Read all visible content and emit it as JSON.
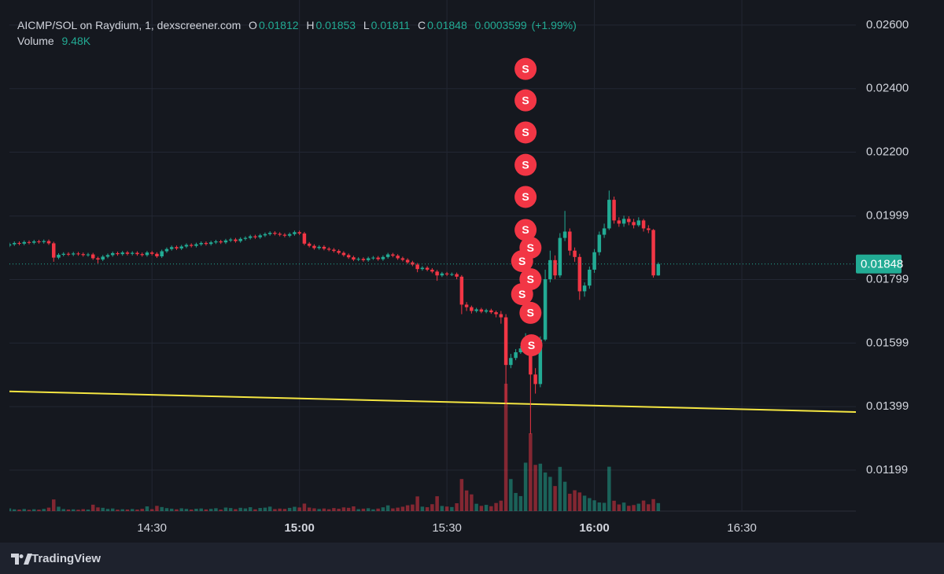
{
  "chart_data": {
    "type": "candlestick",
    "title": "AICMP/SOL on Raydium, 1, dexscreener.com",
    "legend": {
      "o": "O",
      "h": "H",
      "l": "L",
      "c": "C",
      "change": 0.0003599,
      "change_label": "(+1.99%)",
      "volume": "Volume",
      "volume_label": "9.48K"
    },
    "branding": "TradingView",
    "up_color": "#22ab94",
    "down_color": "#f23645",
    "xlim": [
      841,
      1013.2
    ],
    "xticks": [
      {
        "value": 870,
        "label": "14:30"
      },
      {
        "value": 900,
        "label": "15:00"
      },
      {
        "value": 930,
        "label": "15:30"
      },
      {
        "value": 960,
        "label": "16:00"
      },
      {
        "value": 990,
        "label": "16:30"
      }
    ],
    "ylim": [
      0.0107,
      0.02679
    ],
    "yticks": [
      {
        "value": 0.026,
        "label": "0.02600"
      },
      {
        "value": 0.024,
        "label": "0.02400"
      },
      {
        "value": 0.022,
        "label": "0.02200"
      },
      0.01999,
      0.01799,
      0.01599,
      0.01399,
      0.01199
    ],
    "grid": true,
    "x": [
      841,
      842,
      843,
      844,
      845,
      846,
      847,
      848,
      849,
      850,
      851,
      852,
      853,
      854,
      855,
      856,
      857,
      858,
      859,
      860,
      861,
      862,
      863,
      864,
      865,
      866,
      867,
      868,
      869,
      870,
      871,
      872,
      873,
      874,
      875,
      876,
      877,
      878,
      879,
      880,
      881,
      882,
      883,
      884,
      885,
      886,
      887,
      888,
      889,
      890,
      891,
      892,
      893,
      894,
      895,
      896,
      897,
      898,
      899,
      900,
      901,
      902,
      903,
      904,
      905,
      906,
      907,
      908,
      909,
      910,
      911,
      912,
      913,
      914,
      915,
      916,
      917,
      918,
      919,
      920,
      921,
      922,
      923,
      924,
      925,
      926,
      927,
      928,
      929,
      930,
      931,
      932,
      933,
      934,
      935,
      936,
      937,
      938,
      939,
      940,
      941,
      942,
      943,
      944,
      945,
      946,
      947,
      948,
      949,
      950,
      951,
      952,
      953,
      954,
      955,
      956,
      957,
      958,
      959,
      960,
      961,
      962,
      963,
      964,
      965,
      966,
      967,
      968,
      969,
      970,
      971,
      972,
      973
    ],
    "open": [
      0.01906,
      0.0191,
      0.01914,
      0.01912,
      0.01917,
      0.01915,
      0.01919,
      0.01917,
      0.0192,
      0.01913,
      0.01868,
      0.01877,
      0.0188,
      0.01878,
      0.01881,
      0.01879,
      0.01876,
      0.01878,
      0.01866,
      0.01862,
      0.01871,
      0.01876,
      0.01882,
      0.01879,
      0.01884,
      0.0188,
      0.01883,
      0.01879,
      0.01876,
      0.01884,
      0.0188,
      0.01872,
      0.01888,
      0.01895,
      0.01901,
      0.01897,
      0.01903,
      0.01908,
      0.01905,
      0.0191,
      0.01914,
      0.01911,
      0.01916,
      0.01919,
      0.01916,
      0.01922,
      0.01925,
      0.0192,
      0.01927,
      0.0193,
      0.01935,
      0.01932,
      0.01938,
      0.01942,
      0.01946,
      0.01943,
      0.0194,
      0.01937,
      0.01942,
      0.01948,
      0.01944,
      0.01912,
      0.01905,
      0.01898,
      0.01902,
      0.01896,
      0.01893,
      0.01889,
      0.01883,
      0.01876,
      0.01869,
      0.01862,
      0.01864,
      0.0186,
      0.01866,
      0.01868,
      0.01863,
      0.0187,
      0.01878,
      0.01874,
      0.01866,
      0.01861,
      0.01853,
      0.01846,
      0.01832,
      0.01836,
      0.0183,
      0.01824,
      0.01812,
      0.01818,
      0.01815,
      0.01816,
      0.01808,
      0.0172,
      0.01712,
      0.017,
      0.01705,
      0.01698,
      0.01702,
      0.01696,
      0.0169,
      0.0168,
      0.0153,
      0.01552,
      0.0157,
      0.01582,
      0.0159,
      0.015,
      0.0147,
      0.0161,
      0.018,
      0.0186,
      0.01812,
      0.0193,
      0.0195,
      0.0189,
      0.0187,
      0.01762,
      0.0178,
      0.0183,
      0.01885,
      0.0194,
      0.0196,
      0.0205,
      0.01985,
      0.01975,
      0.0199,
      0.0198,
      0.0197,
      0.01985,
      0.0196,
      0.01955,
      0.01812
    ],
    "high": [
      0.01915,
      0.01919,
      0.01919,
      0.01922,
      0.01922,
      0.01924,
      0.01924,
      0.01925,
      0.01925,
      0.01918,
      0.01882,
      0.01885,
      0.01885,
      0.01886,
      0.01886,
      0.01884,
      0.01883,
      0.01883,
      0.01871,
      0.01876,
      0.01881,
      0.01887,
      0.01887,
      0.01889,
      0.01889,
      0.01888,
      0.01888,
      0.01884,
      0.01889,
      0.01889,
      0.01885,
      0.01893,
      0.019,
      0.01906,
      0.01906,
      0.01908,
      0.01913,
      0.01913,
      0.01915,
      0.01919,
      0.01919,
      0.01921,
      0.01924,
      0.01924,
      0.01927,
      0.0193,
      0.0193,
      0.01932,
      0.01935,
      0.0194,
      0.0194,
      0.01943,
      0.01947,
      0.01951,
      0.01951,
      0.01948,
      0.01945,
      0.01947,
      0.01953,
      0.01953,
      0.01949,
      0.01917,
      0.0191,
      0.01907,
      0.01907,
      0.01901,
      0.01898,
      0.01894,
      0.01888,
      0.01881,
      0.01874,
      0.01869,
      0.01869,
      0.01871,
      0.01873,
      0.01873,
      0.01875,
      0.01883,
      0.01883,
      0.01879,
      0.01871,
      0.01866,
      0.01858,
      0.01851,
      0.01841,
      0.01841,
      0.01835,
      0.01829,
      0.01823,
      0.01823,
      0.01821,
      0.01821,
      0.01813,
      0.01728,
      0.01717,
      0.0171,
      0.0171,
      0.01707,
      0.01707,
      0.01701,
      0.017,
      0.0169,
      0.01565,
      0.0158,
      0.0159,
      0.0163,
      0.016,
      0.0152,
      0.0162,
      0.0183,
      0.0189,
      0.01875,
      0.01945,
      0.02015,
      0.0196,
      0.019,
      0.0188,
      0.0179,
      0.0184,
      0.01895,
      0.0195,
      0.01975,
      0.02079,
      0.0206,
      0.01995,
      0.02,
      0.01998,
      0.0199,
      0.01995,
      0.0199,
      0.0197,
      0.01958,
      0.01853
    ],
    "low": [
      0.01901,
      0.01905,
      0.01907,
      0.01907,
      0.0191,
      0.0191,
      0.01912,
      0.01912,
      0.01908,
      0.01855,
      0.01863,
      0.01872,
      0.01873,
      0.01873,
      0.01874,
      0.01871,
      0.01871,
      0.01861,
      0.0185,
      0.01857,
      0.01866,
      0.01871,
      0.01874,
      0.01874,
      0.01875,
      0.01875,
      0.01874,
      0.01871,
      0.01871,
      0.01875,
      0.01867,
      0.01867,
      0.01883,
      0.0189,
      0.01892,
      0.01892,
      0.01898,
      0.019,
      0.019,
      0.01905,
      0.01906,
      0.01906,
      0.01911,
      0.01911,
      0.01911,
      0.01917,
      0.01915,
      0.01915,
      0.01922,
      0.01925,
      0.01927,
      0.01927,
      0.01933,
      0.01937,
      0.01938,
      0.01935,
      0.01932,
      0.01932,
      0.01937,
      0.01939,
      0.01907,
      0.019,
      0.01893,
      0.01893,
      0.01891,
      0.01888,
      0.01884,
      0.01878,
      0.01871,
      0.01864,
      0.01857,
      0.01857,
      0.01855,
      0.01855,
      0.01861,
      0.01858,
      0.01858,
      0.01865,
      0.01869,
      0.01861,
      0.01856,
      0.01848,
      0.01841,
      0.01822,
      0.01827,
      0.01825,
      0.01819,
      0.01795,
      0.01807,
      0.0181,
      0.0181,
      0.018,
      0.0169,
      0.017,
      0.01692,
      0.01695,
      0.01693,
      0.01693,
      0.01691,
      0.0168,
      0.0166,
      0.01407,
      0.0152,
      0.01545,
      0.01565,
      0.01575,
      0.01313,
      0.0144,
      0.0146,
      0.01605,
      0.0179,
      0.018,
      0.01805,
      0.0192,
      0.01875,
      0.01855,
      0.01735,
      0.01745,
      0.0177,
      0.0182,
      0.01875,
      0.0193,
      0.01955,
      0.01975,
      0.01965,
      0.01965,
      0.0197,
      0.0196,
      0.01965,
      0.0195,
      0.01945,
      0.01805,
      0.01811
    ],
    "close": [
      0.0191,
      0.01914,
      0.01912,
      0.01917,
      0.01915,
      0.01919,
      0.01917,
      0.0192,
      0.01913,
      0.01868,
      0.01877,
      0.0188,
      0.01878,
      0.01881,
      0.01879,
      0.01876,
      0.01878,
      0.01866,
      0.01862,
      0.01871,
      0.01876,
      0.01882,
      0.01879,
      0.01884,
      0.0188,
      0.01883,
      0.01879,
      0.01876,
      0.01884,
      0.0188,
      0.01872,
      0.01888,
      0.01895,
      0.01901,
      0.01897,
      0.01903,
      0.01908,
      0.01905,
      0.0191,
      0.01914,
      0.01911,
      0.01916,
      0.01919,
      0.01916,
      0.01922,
      0.01925,
      0.0192,
      0.01927,
      0.0193,
      0.01935,
      0.01932,
      0.01938,
      0.01942,
      0.01946,
      0.01943,
      0.0194,
      0.01937,
      0.01942,
      0.01948,
      0.01944,
      0.01912,
      0.01905,
      0.01898,
      0.01902,
      0.01896,
      0.01893,
      0.01889,
      0.01883,
      0.01876,
      0.01869,
      0.01862,
      0.01864,
      0.0186,
      0.01866,
      0.01868,
      0.01863,
      0.0187,
      0.01878,
      0.01874,
      0.01866,
      0.01861,
      0.01853,
      0.01846,
      0.01832,
      0.01836,
      0.0183,
      0.01824,
      0.01812,
      0.01818,
      0.01815,
      0.01816,
      0.01808,
      0.0172,
      0.01712,
      0.017,
      0.01705,
      0.01698,
      0.01702,
      0.01696,
      0.0169,
      0.0168,
      0.0153,
      0.01552,
      0.0157,
      0.01582,
      0.0159,
      0.015,
      0.0147,
      0.0161,
      0.018,
      0.0186,
      0.01812,
      0.0193,
      0.0195,
      0.0189,
      0.0187,
      0.01762,
      0.0178,
      0.0183,
      0.01885,
      0.0194,
      0.0196,
      0.0205,
      0.01985,
      0.01975,
      0.0199,
      0.0198,
      0.0197,
      0.01985,
      0.0196,
      0.01955,
      0.01812,
      0.01848
    ],
    "volume": [
      3200,
      2100,
      1800,
      2500,
      1500,
      2200,
      1700,
      2600,
      4100,
      13800,
      5200,
      2400,
      1900,
      2100,
      1600,
      2300,
      1800,
      7600,
      4400,
      3900,
      2600,
      3100,
      1700,
      2200,
      1900,
      2500,
      1800,
      2700,
      5600,
      2300,
      6200,
      4800,
      3500,
      2900,
      2100,
      3300,
      2600,
      1900,
      2800,
      3100,
      2000,
      2700,
      3400,
      1800,
      4200,
      3600,
      2300,
      3900,
      3200,
      4600,
      2100,
      3700,
      4100,
      5300,
      2400,
      3000,
      2600,
      3800,
      5100,
      4300,
      8900,
      4200,
      3300,
      2500,
      3100,
      2200,
      3600,
      2800,
      4400,
      3900,
      5600,
      2300,
      2900,
      3400,
      2100,
      3000,
      4500,
      6800,
      3200,
      4100,
      5200,
      6900,
      7800,
      17400,
      5300,
      4600,
      8200,
      17600,
      6100,
      5400,
      4800,
      9300,
      38000,
      24500,
      19800,
      8700,
      6200,
      7400,
      5800,
      9600,
      12400,
      151000,
      38000,
      21500,
      17800,
      57400,
      92300,
      54800,
      56200,
      45800,
      40600,
      29700,
      52400,
      34800,
      20600,
      24700,
      22100,
      18300,
      15400,
      12800,
      10200,
      9800,
      52600,
      12300,
      7900,
      10100,
      6300,
      7200,
      8800,
      12500,
      8100,
      14200,
      9480
    ],
    "trendline": {
      "x": [
        841,
        1013.2
      ],
      "y": [
        0.01447,
        0.01382
      ],
      "color": "#f5e642"
    },
    "markers": [
      {
        "x": 946,
        "y": 0.02462,
        "label": "S"
      },
      {
        "x": 946,
        "y": 0.02363,
        "label": "S"
      },
      {
        "x": 946,
        "y": 0.02262,
        "label": "S"
      },
      {
        "x": 946,
        "y": 0.0216,
        "label": "S"
      },
      {
        "x": 946,
        "y": 0.02059,
        "label": "S"
      },
      {
        "x": 946,
        "y": 0.01955,
        "label": "S"
      },
      {
        "x": 947,
        "y": 0.01899,
        "label": "S"
      },
      {
        "x": 945.3,
        "y": 0.01857,
        "label": "S"
      },
      {
        "x": 947,
        "y": 0.018,
        "label": "S"
      },
      {
        "x": 945.3,
        "y": 0.01753,
        "label": "S"
      },
      {
        "x": 947,
        "y": 0.01694,
        "label": "S"
      },
      {
        "x": 947.2,
        "y": 0.01592,
        "label": "S"
      }
    ],
    "marker_color": "#f23645"
  }
}
